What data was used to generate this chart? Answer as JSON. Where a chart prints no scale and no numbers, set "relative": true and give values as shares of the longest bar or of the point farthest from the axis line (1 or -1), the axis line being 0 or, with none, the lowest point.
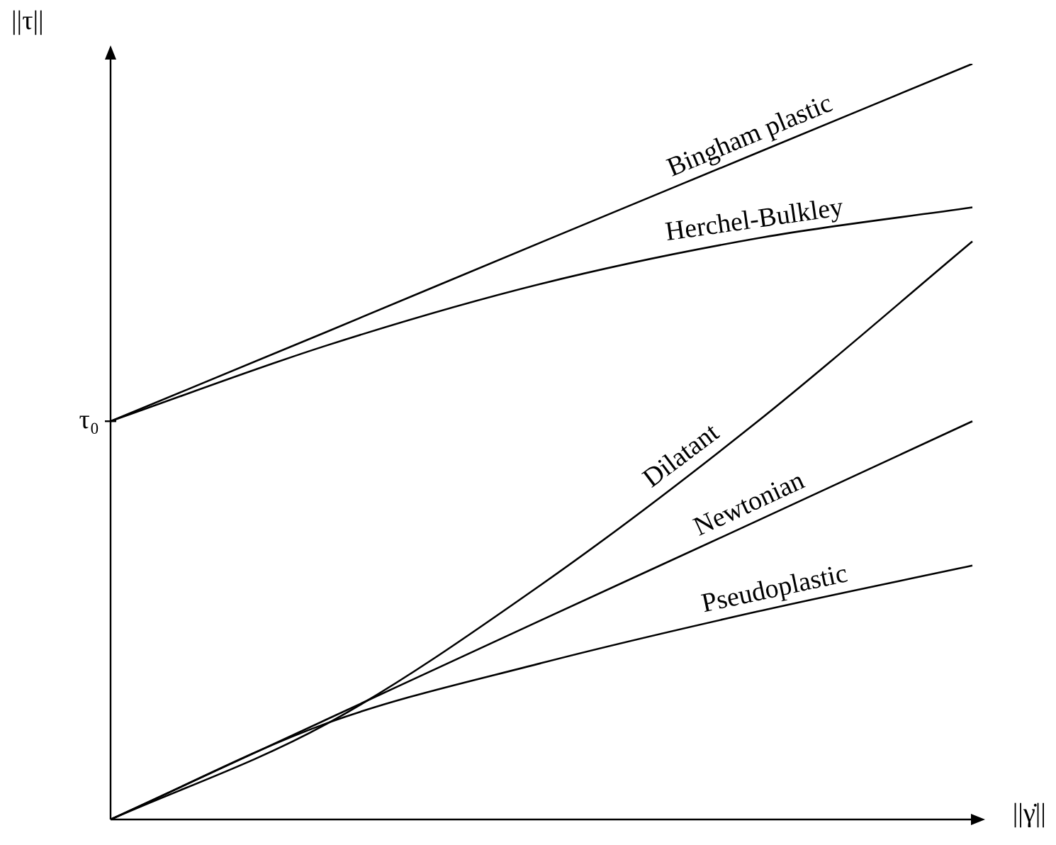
{
  "chart_data": {
    "type": "line",
    "relative": true,
    "xlabel": "||γ̇||",
    "ylabel": "||τ||",
    "categories": [
      null,
      null,
      null,
      null,
      null
    ],
    "series": [
      {
        "name": "Bingham plastic",
        "color": "#000000",
        "values": [
          0.527,
          0.645,
          0.764,
          0.882,
          1
        ]
      },
      {
        "name": "Herchel-Bulkley",
        "color": "#000000",
        "values": [
          0.527,
          0.627,
          0.709,
          0.769,
          0.81
        ]
      },
      {
        "name": "Dilatant",
        "color": "#000000",
        "values": [
          0,
          0.126,
          0.311,
          0.526,
          0.765
        ]
      },
      {
        "name": "Newtonian",
        "color": "#000000",
        "values": [
          0,
          0.132,
          0.264,
          0.395,
          0.527
        ]
      },
      {
        "name": "Pseudoplastic",
        "color": "#000000",
        "values": [
          0,
          0.127,
          0.207,
          0.275,
          0.336
        ]
      }
    ],
    "annotations": [
      "τ₀"
    ],
    "legend": false,
    "grid": false,
    "marker": "none",
    "line_style": "solid"
  }
}
